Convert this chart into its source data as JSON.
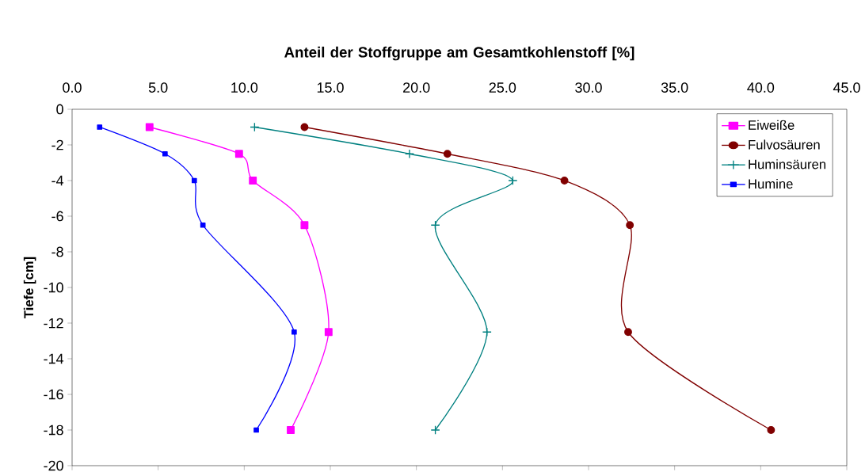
{
  "chart_data": {
    "type": "line",
    "xlabel": "Anteil der Stoffgruppe am Gesamtkohlenstoff [%]",
    "ylabel": "Tiefe [cm]",
    "xlim": [
      0,
      45
    ],
    "ylim": [
      -20,
      0
    ],
    "xticks": [
      {
        "value": 0,
        "label": "0.0"
      },
      {
        "value": 5,
        "label": "5.0"
      },
      {
        "value": 10,
        "label": "10.0"
      },
      {
        "value": 15,
        "label": "15.0"
      },
      {
        "value": 20,
        "label": "20.0"
      },
      {
        "value": 25,
        "label": "25.0"
      },
      {
        "value": 30,
        "label": "30.0"
      },
      {
        "value": 35,
        "label": "35.0"
      },
      {
        "value": 40,
        "label": "40.0"
      },
      {
        "value": 45,
        "label": "45.0"
      }
    ],
    "yticks": [
      0,
      -2,
      -4,
      -6,
      -8,
      -10,
      -12,
      -14,
      -16,
      -18,
      -20
    ],
    "grid": false,
    "legend": "top right",
    "line_style": "solid",
    "series": [
      {
        "name": "Eiweiße",
        "color": "#ff00ff",
        "marker": "square",
        "x": [
          4.5,
          9.7,
          10.5,
          13.5,
          14.9,
          12.7
        ],
        "values": [
          -1,
          -2.5,
          -4,
          -6.5,
          -12.5,
          -18
        ]
      },
      {
        "name": "Fulvosäuren",
        "color": "#800000",
        "marker": "circle",
        "x": [
          13.5,
          21.8,
          28.6,
          32.4,
          32.3,
          40.6
        ],
        "values": [
          -1,
          -2.5,
          -4,
          -6.5,
          -12.5,
          -18
        ]
      },
      {
        "name": "Huminsäuren",
        "color": "#008080",
        "marker": "cross",
        "x": [
          10.6,
          19.6,
          25.6,
          21.1,
          24.1,
          21.1
        ],
        "values": [
          -1,
          -2.5,
          -4,
          -6.5,
          -12.5,
          -18
        ]
      },
      {
        "name": "Humine",
        "color": "#0000ff",
        "marker": "square",
        "x": [
          1.6,
          5.4,
          7.1,
          7.6,
          12.9,
          10.7
        ],
        "values": [
          -1,
          -2.5,
          -4,
          -6.5,
          -12.5,
          -18
        ]
      }
    ]
  }
}
